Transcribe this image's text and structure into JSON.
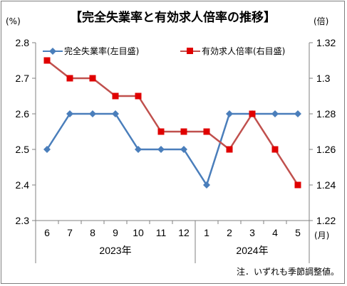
{
  "chart_data": {
    "type": "line",
    "title": "【完全失業率と有効求人倍率の推移】",
    "categories": [
      "6",
      "7",
      "8",
      "9",
      "10",
      "11",
      "12",
      "1",
      "2",
      "3",
      "4",
      "5"
    ],
    "year_groups": [
      {
        "label": "2023年",
        "from": 0,
        "to": 6
      },
      {
        "label": "2024年",
        "from": 7,
        "to": 11
      }
    ],
    "left_axis": {
      "unit": "(%)",
      "range": [
        2.3,
        2.8
      ],
      "ticks": [
        "2.3",
        "2.4",
        "2.5",
        "2.6",
        "2.7",
        "2.8"
      ]
    },
    "right_axis": {
      "unit": "(倍)",
      "range": [
        1.22,
        1.32
      ],
      "ticks": [
        "1.22",
        "1.24",
        "1.26",
        "1.28",
        "1.3",
        "1.32"
      ]
    },
    "x_unit": "(月)",
    "series": [
      {
        "name": "完全失業率(左目盛)",
        "axis": "left",
        "color": "#4a7ebb",
        "marker": "diamond",
        "values": [
          2.5,
          2.6,
          2.6,
          2.6,
          2.5,
          2.5,
          2.5,
          2.4,
          2.6,
          2.6,
          2.6,
          2.6
        ]
      },
      {
        "name": "有効求人倍率(右目盛)",
        "axis": "right",
        "color": "#c0504d",
        "marker_color": "#e00000",
        "marker": "square",
        "values": [
          1.31,
          1.3,
          1.3,
          1.29,
          1.29,
          1.27,
          1.27,
          1.27,
          1.26,
          1.28,
          1.26,
          1.24
        ]
      }
    ],
    "grid": false,
    "legend_position": "top"
  },
  "note": "注．いずれも季節調整値。"
}
